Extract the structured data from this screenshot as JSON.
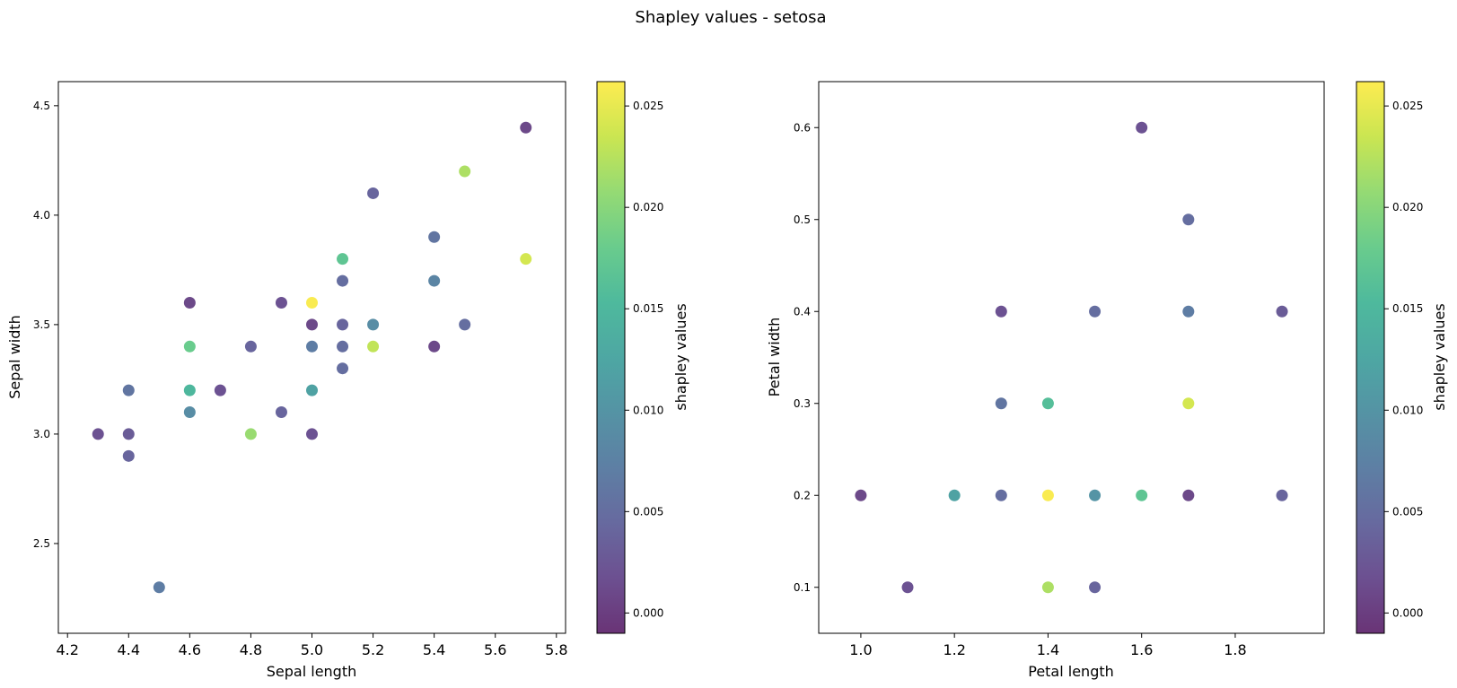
{
  "figure_title": "Shapley values - setosa",
  "chart_data": [
    {
      "type": "scatter",
      "xlabel": "Sepal length",
      "ylabel": "Sepal width",
      "xlim": [
        4.17,
        5.83
      ],
      "ylim": [
        2.09,
        4.61
      ],
      "xticks": [
        4.2,
        4.4,
        4.6,
        4.8,
        5.0,
        5.2,
        5.4,
        5.6,
        5.8
      ],
      "xtick_labels": [
        "4.2",
        "4.4",
        "4.6",
        "4.8",
        "5.0",
        "5.2",
        "5.4",
        "5.6",
        "5.8"
      ],
      "yticks": [
        2.5,
        3.0,
        3.5,
        4.0,
        4.5
      ],
      "ytick_labels": [
        "2.5",
        "3.0",
        "3.5",
        "4.0",
        "4.5"
      ],
      "colorbar": {
        "label": "shapley values",
        "colormap": "viridis",
        "alpha": 0.8,
        "range": [
          -0.001,
          0.0262
        ],
        "ticks": [
          0.0,
          0.005,
          0.01,
          0.015,
          0.02,
          0.025
        ],
        "tick_labels": [
          "0.000",
          "0.005",
          "0.010",
          "0.015",
          "0.020",
          "0.025"
        ]
      },
      "points": [
        {
          "x": 4.3,
          "y": 3.0,
          "c": 0.002
        },
        {
          "x": 4.4,
          "y": 3.2,
          "c": 0.006
        },
        {
          "x": 4.4,
          "y": 3.0,
          "c": 0.003
        },
        {
          "x": 4.4,
          "y": 2.9,
          "c": 0.004
        },
        {
          "x": 4.5,
          "y": 2.3,
          "c": 0.007
        },
        {
          "x": 4.6,
          "y": 3.6,
          "c": 0.001
        },
        {
          "x": 4.6,
          "y": 3.4,
          "c": 0.018
        },
        {
          "x": 4.6,
          "y": 3.2,
          "c": 0.015
        },
        {
          "x": 4.6,
          "y": 3.1,
          "c": 0.009
        },
        {
          "x": 4.7,
          "y": 3.2,
          "c": 0.002
        },
        {
          "x": 4.8,
          "y": 3.4,
          "c": 0.004
        },
        {
          "x": 4.8,
          "y": 3.0,
          "c": 0.021
        },
        {
          "x": 4.9,
          "y": 3.6,
          "c": 0.002
        },
        {
          "x": 4.9,
          "y": 3.1,
          "c": 0.004
        },
        {
          "x": 5.0,
          "y": 3.6,
          "c": 0.026
        },
        {
          "x": 5.0,
          "y": 3.5,
          "c": 0.001
        },
        {
          "x": 5.0,
          "y": 3.4,
          "c": 0.007
        },
        {
          "x": 5.0,
          "y": 3.2,
          "c": 0.012
        },
        {
          "x": 5.0,
          "y": 3.0,
          "c": 0.002
        },
        {
          "x": 5.1,
          "y": 3.8,
          "c": 0.017
        },
        {
          "x": 5.1,
          "y": 3.7,
          "c": 0.005
        },
        {
          "x": 5.1,
          "y": 3.5,
          "c": 0.004
        },
        {
          "x": 5.1,
          "y": 3.4,
          "c": 0.005
        },
        {
          "x": 5.1,
          "y": 3.3,
          "c": 0.005
        },
        {
          "x": 5.2,
          "y": 4.1,
          "c": 0.004
        },
        {
          "x": 5.2,
          "y": 3.5,
          "c": 0.009
        },
        {
          "x": 5.2,
          "y": 3.4,
          "c": 0.023
        },
        {
          "x": 5.4,
          "y": 3.9,
          "c": 0.006
        },
        {
          "x": 5.4,
          "y": 3.7,
          "c": 0.008
        },
        {
          "x": 5.4,
          "y": 3.4,
          "c": 0.001
        },
        {
          "x": 5.5,
          "y": 4.2,
          "c": 0.022
        },
        {
          "x": 5.5,
          "y": 3.5,
          "c": 0.005
        },
        {
          "x": 5.7,
          "y": 4.4,
          "c": 0.001
        },
        {
          "x": 5.7,
          "y": 3.8,
          "c": 0.024
        }
      ]
    },
    {
      "type": "scatter",
      "xlabel": "Petal length",
      "ylabel": "Petal width",
      "xlim": [
        0.91,
        1.99
      ],
      "ylim": [
        0.05,
        0.65
      ],
      "xticks": [
        1.0,
        1.2,
        1.4,
        1.6,
        1.8
      ],
      "xtick_labels": [
        "1.0",
        "1.2",
        "1.4",
        "1.6",
        "1.8"
      ],
      "yticks": [
        0.1,
        0.2,
        0.3,
        0.4,
        0.5,
        0.6
      ],
      "ytick_labels": [
        "0.1",
        "0.2",
        "0.3",
        "0.4",
        "0.5",
        "0.6"
      ],
      "colorbar": {
        "label": "shapley values",
        "colormap": "viridis",
        "alpha": 0.8,
        "range": [
          -0.001,
          0.0262
        ],
        "ticks": [
          0.0,
          0.005,
          0.01,
          0.015,
          0.02,
          0.025
        ],
        "tick_labels": [
          "0.000",
          "0.005",
          "0.010",
          "0.015",
          "0.020",
          "0.025"
        ]
      },
      "points": [
        {
          "x": 1.0,
          "y": 0.2,
          "c": 0.001
        },
        {
          "x": 1.1,
          "y": 0.1,
          "c": 0.002
        },
        {
          "x": 1.2,
          "y": 0.2,
          "c": 0.012
        },
        {
          "x": 1.3,
          "y": 0.4,
          "c": 0.002
        },
        {
          "x": 1.3,
          "y": 0.3,
          "c": 0.006
        },
        {
          "x": 1.3,
          "y": 0.2,
          "c": 0.005
        },
        {
          "x": 1.4,
          "y": 0.3,
          "c": 0.016
        },
        {
          "x": 1.4,
          "y": 0.2,
          "c": 0.026
        },
        {
          "x": 1.4,
          "y": 0.1,
          "c": 0.022
        },
        {
          "x": 1.5,
          "y": 0.4,
          "c": 0.005
        },
        {
          "x": 1.5,
          "y": 0.2,
          "c": 0.01
        },
        {
          "x": 1.5,
          "y": 0.1,
          "c": 0.004
        },
        {
          "x": 1.6,
          "y": 0.6,
          "c": 0.002
        },
        {
          "x": 1.6,
          "y": 0.2,
          "c": 0.017
        },
        {
          "x": 1.7,
          "y": 0.5,
          "c": 0.005
        },
        {
          "x": 1.7,
          "y": 0.4,
          "c": 0.007
        },
        {
          "x": 1.7,
          "y": 0.3,
          "c": 0.024
        },
        {
          "x": 1.7,
          "y": 0.2,
          "c": 0.001
        },
        {
          "x": 1.9,
          "y": 0.4,
          "c": 0.003
        },
        {
          "x": 1.9,
          "y": 0.2,
          "c": 0.004
        }
      ]
    }
  ]
}
